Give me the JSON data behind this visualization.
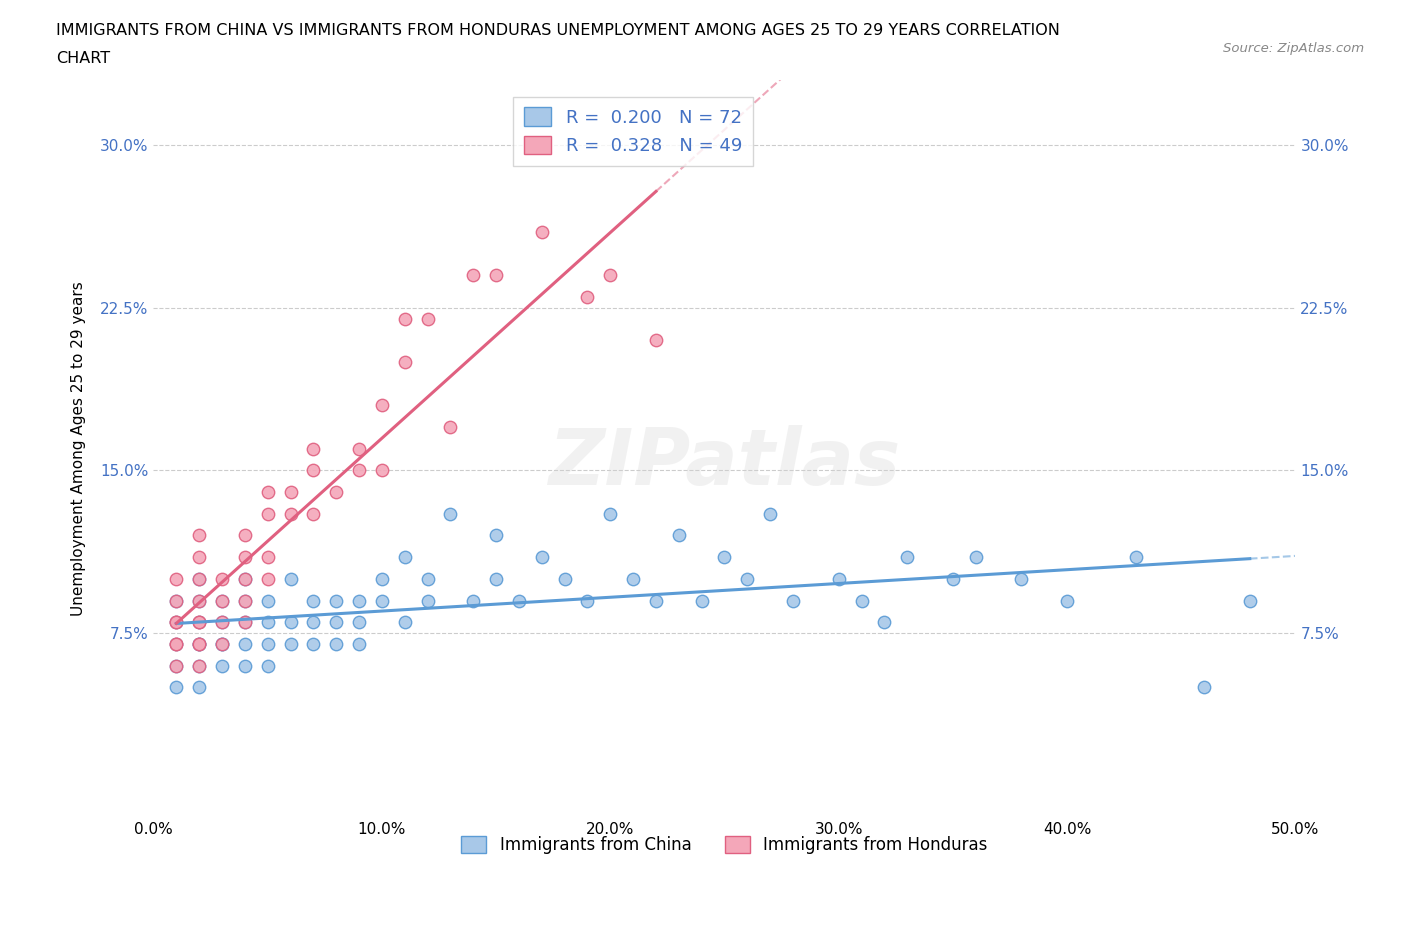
{
  "title_line1": "IMMIGRANTS FROM CHINA VS IMMIGRANTS FROM HONDURAS UNEMPLOYMENT AMONG AGES 25 TO 29 YEARS CORRELATION",
  "title_line2": "CHART",
  "source_text": "Source: ZipAtlas.com",
  "ylabel": "Unemployment Among Ages 25 to 29 years",
  "xlim": [
    0,
    0.5
  ],
  "ylim": [
    -0.01,
    0.33
  ],
  "xticks": [
    0.0,
    0.1,
    0.2,
    0.3,
    0.4,
    0.5
  ],
  "xticklabels": [
    "0.0%",
    "10.0%",
    "20.0%",
    "30.0%",
    "40.0%",
    "50.0%"
  ],
  "yticks": [
    0.075,
    0.15,
    0.225,
    0.3
  ],
  "yticklabels": [
    "7.5%",
    "15.0%",
    "22.5%",
    "30.0%"
  ],
  "china_fill_color": "#A8C8E8",
  "china_edge_color": "#5B9BD5",
  "honduras_fill_color": "#F4A7B9",
  "honduras_edge_color": "#E06080",
  "trend_china_color": "#5B9BD5",
  "trend_honduras_color": "#E06080",
  "legend_R_china": "0.200",
  "legend_N_china": "72",
  "legend_R_honduras": "0.328",
  "legend_N_honduras": "49",
  "legend_label_china": "Immigrants from China",
  "legend_label_honduras": "Immigrants from Honduras",
  "watermark": "ZIPatlas",
  "background_color": "#ffffff",
  "grid_color": "#cccccc",
  "stat_label_color": "#4472C4",
  "china_scatter_x": [
    0.01,
    0.01,
    0.01,
    0.01,
    0.01,
    0.02,
    0.02,
    0.02,
    0.02,
    0.02,
    0.02,
    0.02,
    0.03,
    0.03,
    0.03,
    0.03,
    0.03,
    0.04,
    0.04,
    0.04,
    0.04,
    0.04,
    0.05,
    0.05,
    0.05,
    0.05,
    0.06,
    0.06,
    0.06,
    0.07,
    0.07,
    0.07,
    0.08,
    0.08,
    0.08,
    0.09,
    0.09,
    0.09,
    0.1,
    0.1,
    0.11,
    0.11,
    0.12,
    0.12,
    0.13,
    0.14,
    0.15,
    0.15,
    0.16,
    0.17,
    0.18,
    0.19,
    0.2,
    0.21,
    0.22,
    0.23,
    0.24,
    0.25,
    0.26,
    0.27,
    0.28,
    0.3,
    0.31,
    0.32,
    0.33,
    0.35,
    0.36,
    0.38,
    0.4,
    0.43,
    0.46,
    0.48
  ],
  "china_scatter_y": [
    0.08,
    0.07,
    0.06,
    0.05,
    0.09,
    0.07,
    0.06,
    0.08,
    0.05,
    0.09,
    0.07,
    0.1,
    0.07,
    0.06,
    0.08,
    0.09,
    0.07,
    0.06,
    0.08,
    0.07,
    0.09,
    0.1,
    0.07,
    0.08,
    0.06,
    0.09,
    0.08,
    0.07,
    0.1,
    0.09,
    0.07,
    0.08,
    0.07,
    0.09,
    0.08,
    0.07,
    0.09,
    0.08,
    0.1,
    0.09,
    0.08,
    0.11,
    0.09,
    0.1,
    0.13,
    0.09,
    0.12,
    0.1,
    0.09,
    0.11,
    0.1,
    0.09,
    0.13,
    0.1,
    0.09,
    0.12,
    0.09,
    0.11,
    0.1,
    0.13,
    0.09,
    0.1,
    0.09,
    0.08,
    0.11,
    0.1,
    0.11,
    0.1,
    0.09,
    0.11,
    0.05,
    0.09
  ],
  "honduras_scatter_x": [
    0.01,
    0.01,
    0.01,
    0.01,
    0.01,
    0.01,
    0.01,
    0.02,
    0.02,
    0.02,
    0.02,
    0.02,
    0.02,
    0.02,
    0.02,
    0.02,
    0.03,
    0.03,
    0.03,
    0.03,
    0.04,
    0.04,
    0.04,
    0.04,
    0.04,
    0.05,
    0.05,
    0.05,
    0.05,
    0.06,
    0.06,
    0.07,
    0.07,
    0.07,
    0.08,
    0.09,
    0.09,
    0.1,
    0.1,
    0.11,
    0.11,
    0.12,
    0.13,
    0.14,
    0.15,
    0.17,
    0.19,
    0.2,
    0.22
  ],
  "honduras_scatter_y": [
    0.08,
    0.07,
    0.06,
    0.09,
    0.1,
    0.07,
    0.08,
    0.07,
    0.08,
    0.09,
    0.06,
    0.1,
    0.11,
    0.12,
    0.08,
    0.07,
    0.08,
    0.09,
    0.1,
    0.07,
    0.1,
    0.11,
    0.09,
    0.12,
    0.08,
    0.14,
    0.13,
    0.1,
    0.11,
    0.13,
    0.14,
    0.15,
    0.16,
    0.13,
    0.14,
    0.15,
    0.16,
    0.18,
    0.15,
    0.2,
    0.22,
    0.22,
    0.17,
    0.24,
    0.24,
    0.26,
    0.23,
    0.24,
    0.21
  ]
}
